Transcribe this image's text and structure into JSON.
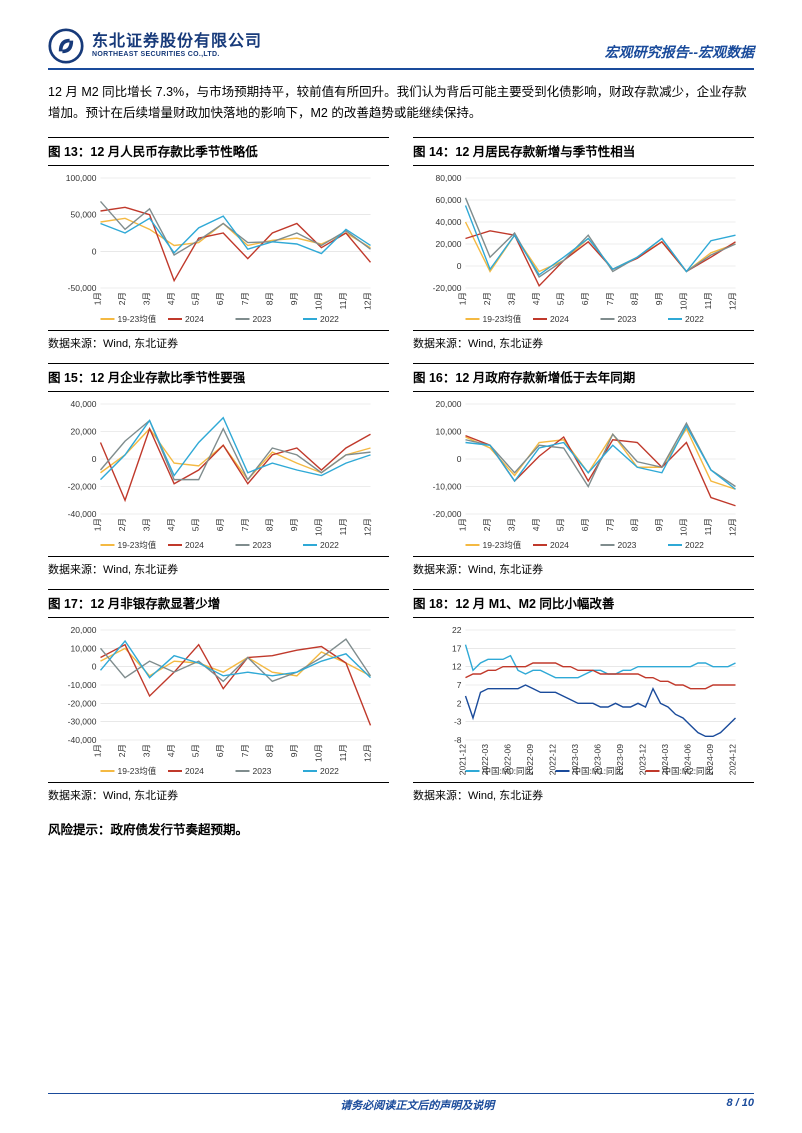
{
  "header": {
    "logo_cn": "东北证券股份有限公司",
    "logo_en": "NORTHEAST SECURITIES CO.,LTD.",
    "right": "宏观研究报告--宏观数据"
  },
  "paragraph": "12 月 M2 同比增长 7.3%，与市场预期持平，较前值有所回升。我们认为背后可能主要受到化债影响，财政存款减少，企业存款增加。预计在后续增量财政加快落地的影响下，M2 的改善趋势或能继续保持。",
  "risk_label": "风险提示：",
  "risk_text": "政府债发行节奏超预期。",
  "footer": {
    "disclaimer": "请务必阅读正文后的声明及说明",
    "page": "8 / 10"
  },
  "source_label": "数据来源：Wind, 东北证券",
  "legend_labels_A": [
    "19-23均值",
    "2024",
    "2023",
    "2022"
  ],
  "legend_labels_B": [
    "中国:M0:同比",
    "中国:M1:同比",
    "中国:M2:同比"
  ],
  "legend_colors_A": [
    "#f4b942",
    "#c0392b",
    "#7f8c8d",
    "#2fa9d6"
  ],
  "legend_colors_B": [
    "#2fa9d6",
    "#1a4b9b",
    "#c0392b"
  ],
  "months": [
    "1月",
    "2月",
    "3月",
    "4月",
    "5月",
    "6月",
    "7月",
    "8月",
    "9月",
    "10月",
    "11月",
    "12月"
  ],
  "charts": [
    {
      "id": "fig13",
      "title": "图 13：12 月人民币存款比季节性略低",
      "type": "line",
      "ymin": -50000,
      "ymax": 100000,
      "ystep": 50000,
      "xlabels": "months",
      "series": [
        {
          "color": "#f4b942",
          "values": [
            40000,
            45000,
            30000,
            8000,
            12000,
            38000,
            8000,
            15000,
            18000,
            10000,
            25000,
            5000
          ]
        },
        {
          "color": "#c0392b",
          "values": [
            55000,
            60000,
            50000,
            -40000,
            18000,
            25000,
            -10000,
            25000,
            38000,
            5000,
            25000,
            -15000
          ]
        },
        {
          "color": "#7f8c8d",
          "values": [
            68000,
            30000,
            58000,
            -5000,
            15000,
            38000,
            12000,
            13000,
            25000,
            8000,
            28000,
            3000
          ]
        },
        {
          "color": "#2fa9d6",
          "values": [
            38000,
            25000,
            45000,
            -2000,
            32000,
            48000,
            3000,
            13000,
            10000,
            -3000,
            30000,
            8000
          ]
        }
      ],
      "legend": "A"
    },
    {
      "id": "fig14",
      "title": "图 14：12 月居民存款新增与季节性相当",
      "type": "line",
      "ymin": -20000,
      "ymax": 80000,
      "ystep": 20000,
      "xlabels": "months",
      "series": [
        {
          "color": "#f4b942",
          "values": [
            40000,
            -5000,
            28000,
            -5000,
            5000,
            25000,
            -3000,
            8000,
            22000,
            -5000,
            12000,
            20000
          ]
        },
        {
          "color": "#c0392b",
          "values": [
            25000,
            32000,
            28000,
            -18000,
            5000,
            22000,
            -3000,
            7000,
            22000,
            -5000,
            8000,
            22000
          ]
        },
        {
          "color": "#7f8c8d",
          "values": [
            62000,
            8000,
            30000,
            -10000,
            5000,
            28000,
            -5000,
            8000,
            25000,
            -5000,
            10000,
            20000
          ]
        },
        {
          "color": "#2fa9d6",
          "values": [
            55000,
            -3000,
            28000,
            -8000,
            8000,
            25000,
            -3000,
            8000,
            25000,
            -5000,
            23000,
            28000
          ]
        }
      ],
      "legend": "A"
    },
    {
      "id": "fig15",
      "title": "图 15：12 月企业存款比季节性要强",
      "type": "line",
      "ymin": -40000,
      "ymax": 40000,
      "ystep": 20000,
      "xlabels": "months",
      "series": [
        {
          "color": "#f4b942",
          "values": [
            -10000,
            3000,
            22000,
            -3000,
            -5000,
            10000,
            -15000,
            5000,
            -3000,
            -10000,
            3000,
            8000
          ]
        },
        {
          "color": "#c0392b",
          "values": [
            12000,
            -30000,
            22000,
            -18000,
            -8000,
            10000,
            -18000,
            3000,
            8000,
            -8000,
            8000,
            18000
          ]
        },
        {
          "color": "#7f8c8d",
          "values": [
            -8000,
            13000,
            28000,
            -15000,
            -15000,
            22000,
            -15000,
            8000,
            3000,
            -10000,
            3000,
            5000
          ]
        },
        {
          "color": "#2fa9d6",
          "values": [
            -15000,
            3000,
            28000,
            -12000,
            12000,
            30000,
            -10000,
            -3000,
            -8000,
            -12000,
            -3000,
            3000
          ]
        }
      ],
      "legend": "A"
    },
    {
      "id": "fig16",
      "title": "图 16：12 月政府存款新增低于去年同期",
      "type": "line",
      "ymin": -20000,
      "ymax": 20000,
      "ystep": 10000,
      "xlabels": "months",
      "series": [
        {
          "color": "#f4b942",
          "values": [
            8000,
            4000,
            -6000,
            6000,
            7000,
            -5000,
            9000,
            -3000,
            -3000,
            11000,
            -8000,
            -11000
          ]
        },
        {
          "color": "#c0392b",
          "values": [
            8500,
            5000,
            -8000,
            1000,
            8000,
            -8000,
            7000,
            6000,
            -3000,
            6000,
            -14000,
            -17000
          ]
        },
        {
          "color": "#7f8c8d",
          "values": [
            7000,
            5000,
            -5000,
            5000,
            4000,
            -10000,
            9000,
            -1000,
            -3000,
            13000,
            -4000,
            -10000
          ]
        },
        {
          "color": "#2fa9d6",
          "values": [
            6000,
            5000,
            -8000,
            4000,
            6000,
            -5000,
            5000,
            -3000,
            -5000,
            12000,
            -4000,
            -11000
          ]
        }
      ],
      "legend": "A"
    },
    {
      "id": "fig17",
      "title": "图 17：12 月非银存款显著少增",
      "type": "line",
      "ymin": -40000,
      "ymax": 20000,
      "ystep": 10000,
      "xlabels": "months",
      "series": [
        {
          "color": "#f4b942",
          "values": [
            3000,
            10000,
            -5000,
            3000,
            2000,
            -3000,
            5000,
            -3000,
            -5000,
            8000,
            2000,
            -5000
          ]
        },
        {
          "color": "#c0392b",
          "values": [
            5000,
            12000,
            -16000,
            -3000,
            12000,
            -12000,
            5000,
            6000,
            9000,
            11000,
            2000,
            -32000
          ]
        },
        {
          "color": "#7f8c8d",
          "values": [
            10000,
            -6000,
            3000,
            -3000,
            3000,
            -8000,
            5000,
            -8000,
            -3000,
            5000,
            15000,
            -5000
          ]
        },
        {
          "color": "#2fa9d6",
          "values": [
            -2000,
            14000,
            -6000,
            6000,
            2000,
            -5000,
            -3000,
            -5000,
            -3000,
            3000,
            7000,
            -6000
          ]
        }
      ],
      "legend": "A"
    },
    {
      "id": "fig18",
      "title": "图 18：12 月 M1、M2 同比小幅改善",
      "type": "line",
      "ymin": -8,
      "ymax": 22,
      "ystep": 5,
      "xlabels": "dates18",
      "series": [
        {
          "color": "#2fa9d6",
          "values": [
            18,
            11,
            13,
            14,
            14,
            14,
            15,
            11,
            10,
            11,
            11,
            10,
            9,
            9,
            9,
            9,
            10,
            11,
            11,
            10,
            10,
            11,
            11,
            12,
            12,
            12,
            12,
            12,
            12,
            12,
            12,
            13,
            13,
            12,
            12,
            12,
            13
          ]
        },
        {
          "color": "#1a4b9b",
          "values": [
            4,
            -2,
            5,
            6,
            6,
            6,
            6,
            6,
            7,
            6,
            5,
            5,
            5,
            4,
            3,
            2,
            2,
            2,
            1,
            1,
            2,
            1,
            1,
            2,
            1,
            6,
            2,
            1,
            -1,
            -2,
            -4,
            -6,
            -7,
            -7,
            -6,
            -4,
            -2
          ]
        },
        {
          "color": "#c0392b",
          "values": [
            9,
            10,
            10,
            11,
            11,
            12,
            12,
            12,
            12,
            13,
            13,
            13,
            13,
            12,
            12,
            11,
            11,
            11,
            10,
            10,
            10,
            10,
            10,
            10,
            9,
            9,
            8,
            8,
            7,
            7,
            6,
            6,
            6,
            7,
            7,
            7,
            7
          ]
        }
      ],
      "legend": "B"
    }
  ],
  "dates18": [
    "2021-12",
    "2022-03",
    "2022-06",
    "2022-09",
    "2022-12",
    "2023-03",
    "2023-06",
    "2023-09",
    "2023-12",
    "2024-03",
    "2024-06",
    "2024-09",
    "2024-12"
  ],
  "chart_style": {
    "axis_color": "#333333",
    "grid_color": "#d9d9d9",
    "label_fontsize": 8.5,
    "line_width": 1.4,
    "background": "#ffffff"
  }
}
